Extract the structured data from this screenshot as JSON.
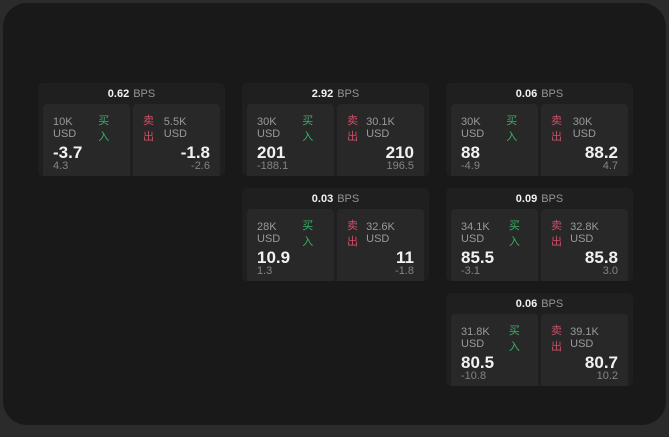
{
  "labels": {
    "bps": "BPS",
    "buy": "买入",
    "sell": "卖出"
  },
  "colors": {
    "outer_background": "#2b2b2b",
    "panel_background": "#191919",
    "card_background": "#1f1f1f",
    "tile_background": "#282828",
    "buy_green": "#3ab06a",
    "sell_red": "#cc4f66",
    "primary_text": "#f2f2f2",
    "muted_text": "#9a9a9a"
  },
  "cards": [
    {
      "bps": "0.62",
      "buy": {
        "size": "10K USD",
        "main": "-3.7",
        "sub": "4.3"
      },
      "sell": {
        "size": "5.5K USD",
        "main": "-1.8",
        "sub": "-2.6"
      }
    },
    {
      "bps": "2.92",
      "buy": {
        "size": "30K USD",
        "main": "201",
        "sub": "-188.1"
      },
      "sell": {
        "size": "30.1K USD",
        "main": "210",
        "sub": "196.5"
      }
    },
    {
      "bps": "0.06",
      "buy": {
        "size": "30K USD",
        "main": "88",
        "sub": "-4.9"
      },
      "sell": {
        "size": "30K USD",
        "main": "88.2",
        "sub": "4.7"
      }
    },
    {
      "bps": "0.03",
      "buy": {
        "size": "28K USD",
        "main": "10.9",
        "sub": "1.3"
      },
      "sell": {
        "size": "32.6K USD",
        "main": "11",
        "sub": "-1.8"
      }
    },
    {
      "bps": "0.09",
      "buy": {
        "size": "34.1K USD",
        "main": "85.5",
        "sub": "-3.1"
      },
      "sell": {
        "size": "32.8K USD",
        "main": "85.8",
        "sub": "3.0"
      }
    },
    {
      "bps": "0.06",
      "buy": {
        "size": "31.8K USD",
        "main": "80.5",
        "sub": "-10.8"
      },
      "sell": {
        "size": "39.1K USD",
        "main": "80.7",
        "sub": "10.2"
      }
    }
  ]
}
